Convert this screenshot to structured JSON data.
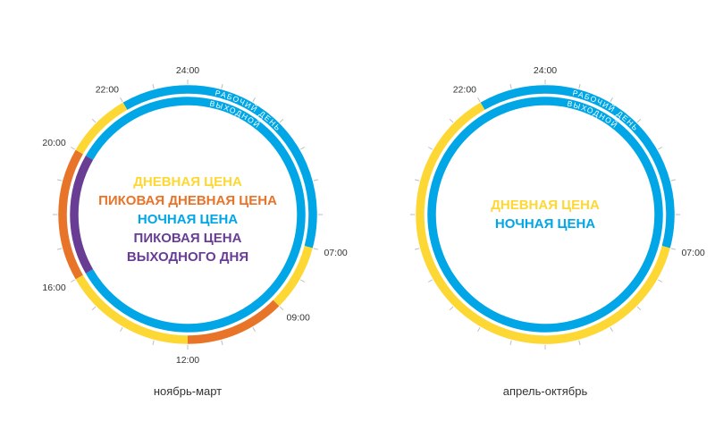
{
  "colors": {
    "day": "#fdd835",
    "peak_day": "#e8742a",
    "night": "#00a6e6",
    "weekend_peak": "#6a3d94",
    "tick": "#bdbdbd"
  },
  "rings": {
    "outer_label": "РАБОЧИЙ ДЕНЬ",
    "inner_label": "ВЫХОДНОЙ"
  },
  "charts": [
    {
      "caption": "ноябрь-март",
      "legend": [
        {
          "text": "ДНЕВНАЯ ЦЕНА",
          "color_key": "day"
        },
        {
          "text": "ПИКОВАЯ ДНЕВНАЯ ЦЕНА",
          "color_key": "peak_day"
        },
        {
          "text": "НОЧНАЯ ЦЕНА",
          "color_key": "night"
        },
        {
          "text": "ПИКОВАЯ ЦЕНА",
          "color_key": "weekend_peak"
        },
        {
          "text": "ВЫХОДНОГО ДНЯ",
          "color_key": "weekend_peak"
        }
      ],
      "hour_labels": [
        {
          "hour": 24,
          "text": "24:00"
        },
        {
          "hour": 22,
          "text": "22:00"
        },
        {
          "hour": 20,
          "text": "20:00"
        },
        {
          "hour": 16,
          "text": "16:00"
        },
        {
          "hour": 12,
          "text": "12:00"
        },
        {
          "hour": 9,
          "text": "09:00"
        },
        {
          "hour": 7,
          "text": "07:00"
        }
      ],
      "workday": [
        {
          "from": 22,
          "to": 7,
          "tariff": "night"
        },
        {
          "from": 7,
          "to": 9,
          "tariff": "day"
        },
        {
          "from": 9,
          "to": 12,
          "tariff": "peak_day"
        },
        {
          "from": 12,
          "to": 16,
          "tariff": "day"
        },
        {
          "from": 16,
          "to": 20,
          "tariff": "peak_day"
        },
        {
          "from": 20,
          "to": 22,
          "tariff": "day"
        }
      ],
      "weekend": [
        {
          "from": 20,
          "to": 16,
          "tariff": "night"
        },
        {
          "from": 16,
          "to": 20,
          "tariff": "weekend_peak"
        }
      ]
    },
    {
      "caption": "апрель-октябрь",
      "legend": [
        {
          "text": "ДНЕВНАЯ ЦЕНА",
          "color_key": "day"
        },
        {
          "text": "НОЧНАЯ ЦЕНА",
          "color_key": "night"
        }
      ],
      "hour_labels": [
        {
          "hour": 24,
          "text": "24:00"
        },
        {
          "hour": 22,
          "text": "22:00"
        },
        {
          "hour": 7,
          "text": "07:00"
        }
      ],
      "workday": [
        {
          "from": 22,
          "to": 7,
          "tariff": "night"
        },
        {
          "from": 7,
          "to": 22,
          "tariff": "day"
        }
      ],
      "weekend": [
        {
          "from": 0,
          "to": 24,
          "tariff": "night"
        }
      ]
    }
  ]
}
